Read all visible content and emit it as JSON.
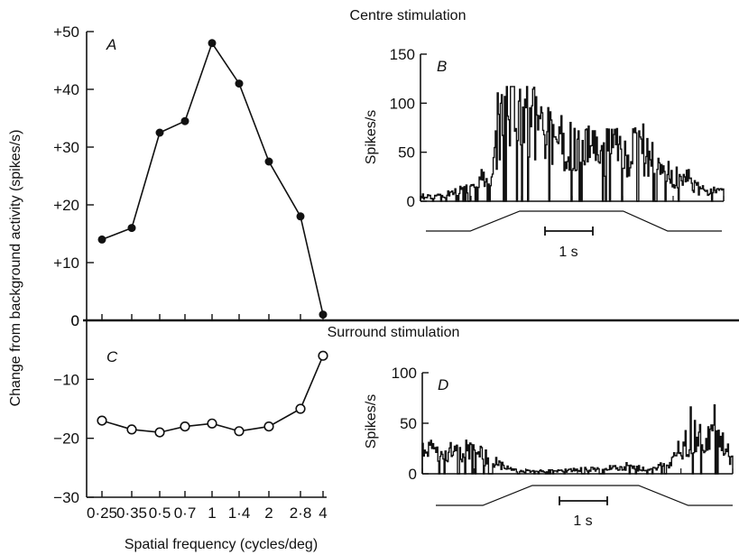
{
  "figure": {
    "centre_title": "Centre stimulation",
    "surround_title": "Surround stimulation",
    "ylabel": "Change from background activity (spikes/s)",
    "xlabel": "Spatial frequency (cycles/deg)",
    "panels": {
      "A": "A",
      "B": "B",
      "C": "C",
      "D": "D"
    },
    "spikes_label": "Spikes/s",
    "scale_bar_label": "1 s"
  },
  "chart_data": [
    {
      "id": "A",
      "type": "line",
      "title": "Centre stimulation",
      "xlabel": "Spatial frequency (cycles/deg)",
      "ylabel": "Change from background activity (spikes/s)",
      "categories": [
        "0·25",
        "0·35",
        "0·5",
        "0·7",
        "1",
        "1·4",
        "2",
        "2·8",
        "4"
      ],
      "x": [
        0.25,
        0.35,
        0.5,
        0.7,
        1,
        1.4,
        2,
        2.8,
        4
      ],
      "values": [
        14,
        16,
        32.5,
        34.5,
        48,
        41,
        27.5,
        18,
        1
      ],
      "marker": "filled-circle",
      "ylim": [
        0,
        50
      ],
      "yticks": [
        0,
        10,
        20,
        30,
        40,
        50
      ],
      "ytick_labels": [
        "0",
        "+10",
        "+20",
        "+30",
        "+40",
        "+50"
      ]
    },
    {
      "id": "C",
      "type": "line",
      "title": "Surround stimulation",
      "xlabel": "Spatial frequency (cycles/deg)",
      "categories": [
        "0·25",
        "0·35",
        "0·5",
        "0·7",
        "1",
        "1·4",
        "2",
        "2·8",
        "4"
      ],
      "x": [
        0.25,
        0.35,
        0.5,
        0.7,
        1,
        1.4,
        2,
        2.8,
        4
      ],
      "values": [
        -17,
        -18.5,
        -19,
        -18,
        -17.5,
        -18.8,
        -18,
        -15,
        -6
      ],
      "marker": "open-circle",
      "ylim": [
        -30,
        0
      ],
      "yticks": [
        0,
        -10,
        -20,
        -30
      ],
      "ytick_labels": [
        "0",
        "−10",
        "−20",
        "−30"
      ],
      "xtick_labels": [
        "0·25",
        "0·35",
        "0·5",
        "0·7",
        "1",
        "1·4",
        "2",
        "2·8",
        "4"
      ]
    },
    {
      "id": "B",
      "type": "line",
      "ylabel": "Spikes/s",
      "ylim": [
        0,
        150
      ],
      "yticks": [
        0,
        50,
        100,
        150
      ],
      "ytick_labels": [
        "0",
        "50",
        "100",
        "150"
      ],
      "time_range_s": [
        0,
        6
      ],
      "scale_bar": "1 s",
      "rate_profile": [
        [
          0,
          4
        ],
        [
          0.4,
          5
        ],
        [
          1.0,
          12
        ],
        [
          1.45,
          30
        ],
        [
          1.55,
          70
        ],
        [
          1.8,
          82
        ],
        [
          2.2,
          75
        ],
        [
          2.6,
          62
        ],
        [
          3.0,
          55
        ],
        [
          3.5,
          48
        ],
        [
          4.0,
          50
        ],
        [
          4.4,
          45
        ],
        [
          4.8,
          30
        ],
        [
          5.2,
          18
        ],
        [
          5.6,
          10
        ],
        [
          6.0,
          8
        ]
      ],
      "stimulus_profile": [
        [
          0,
          0
        ],
        [
          0.9,
          0
        ],
        [
          1.9,
          1
        ],
        [
          4.0,
          1
        ],
        [
          4.9,
          0
        ],
        [
          6.0,
          0
        ]
      ]
    },
    {
      "id": "D",
      "type": "line",
      "ylabel": "Spikes/s",
      "ylim": [
        0,
        100
      ],
      "yticks": [
        0,
        50,
        100
      ],
      "ytick_labels": [
        "0",
        "50",
        "100"
      ],
      "time_range_s": [
        0,
        6
      ],
      "scale_bar": "1 s",
      "rate_profile": [
        [
          0,
          20
        ],
        [
          0.6,
          22
        ],
        [
          1.0,
          20
        ],
        [
          1.3,
          14
        ],
        [
          1.6,
          5
        ],
        [
          2.0,
          2
        ],
        [
          2.8,
          3
        ],
        [
          3.5,
          5
        ],
        [
          4.0,
          6
        ],
        [
          4.4,
          4
        ],
        [
          4.8,
          10
        ],
        [
          5.1,
          30
        ],
        [
          5.4,
          38
        ],
        [
          5.8,
          30
        ],
        [
          6.0,
          14
        ]
      ],
      "stimulus_profile": [
        [
          0,
          0
        ],
        [
          0.95,
          0
        ],
        [
          1.95,
          1
        ],
        [
          4.1,
          1
        ],
        [
          5.1,
          0
        ],
        [
          6.0,
          0
        ]
      ]
    }
  ]
}
